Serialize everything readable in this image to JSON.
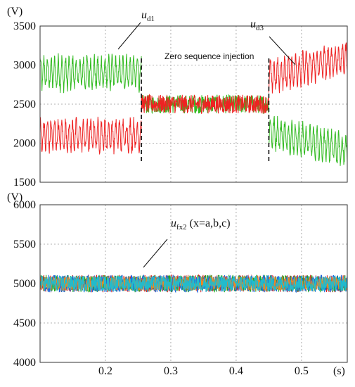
{
  "chart_data": [
    {
      "type": "line",
      "unit_label": "(V)",
      "ylim": [
        1500,
        3500
      ],
      "yticks": [
        "1500",
        "2000",
        "2500",
        "3000",
        "3500"
      ],
      "xlim": [
        0.1,
        0.57
      ],
      "grid": true,
      "series": [
        {
          "name": "u_d1",
          "label_main": "u",
          "label_sub": "d1",
          "color": "#33bb22",
          "segments": [
            {
              "x": [
                0.1,
                0.255
              ],
              "mean": 2900,
              "amplitude": 180,
              "mean_end": 2900
            },
            {
              "x": [
                0.255,
                0.45
              ],
              "mean": 2500,
              "amplitude": 120,
              "mean_end": 2500
            },
            {
              "x": [
                0.45,
                0.57
              ],
              "mean": 2150,
              "amplitude": 170,
              "mean_end": 1900
            }
          ]
        },
        {
          "name": "u_d3",
          "label_main": "u",
          "label_sub": "d3",
          "color": "#ee2222",
          "segments": [
            {
              "x": [
                0.1,
                0.255
              ],
              "mean": 2100,
              "amplitude": 170,
              "mean_end": 2100
            },
            {
              "x": [
                0.255,
                0.45
              ],
              "mean": 2500,
              "amplitude": 120,
              "mean_end": 2500
            },
            {
              "x": [
                0.45,
                0.57
              ],
              "mean": 2850,
              "amplitude": 170,
              "mean_end": 3100
            }
          ]
        }
      ],
      "markers": [
        0.255,
        0.45
      ],
      "annotation": "Zero sequence injection",
      "annotation_color": "#1f6fd0"
    },
    {
      "type": "line",
      "unit_label": "(V)",
      "ylim": [
        4000,
        6000
      ],
      "yticks": [
        "4000",
        "4500",
        "5000",
        "5500",
        "6000"
      ],
      "xlim": [
        0.1,
        0.57
      ],
      "xticks": [
        "0.2",
        "0.3",
        "0.4",
        "0.5"
      ],
      "xtick_values": [
        0.2,
        0.3,
        0.4,
        0.5
      ],
      "x_unit": "(s)",
      "grid": true,
      "label_main": "u",
      "label_sub": "fx2",
      "label_rest": " (x=a,b,c)",
      "series": [
        {
          "color": "#dd2222",
          "mean": 5000,
          "amplitude": 110
        },
        {
          "color": "#22aa22",
          "mean": 5000,
          "amplitude": 110
        },
        {
          "color": "#2266dd",
          "mean": 5000,
          "amplitude": 110
        },
        {
          "color": "#ee8822",
          "mean": 5000,
          "amplitude": 90
        },
        {
          "color": "#22bbcc",
          "mean": 5000,
          "amplitude": 100
        }
      ]
    }
  ]
}
